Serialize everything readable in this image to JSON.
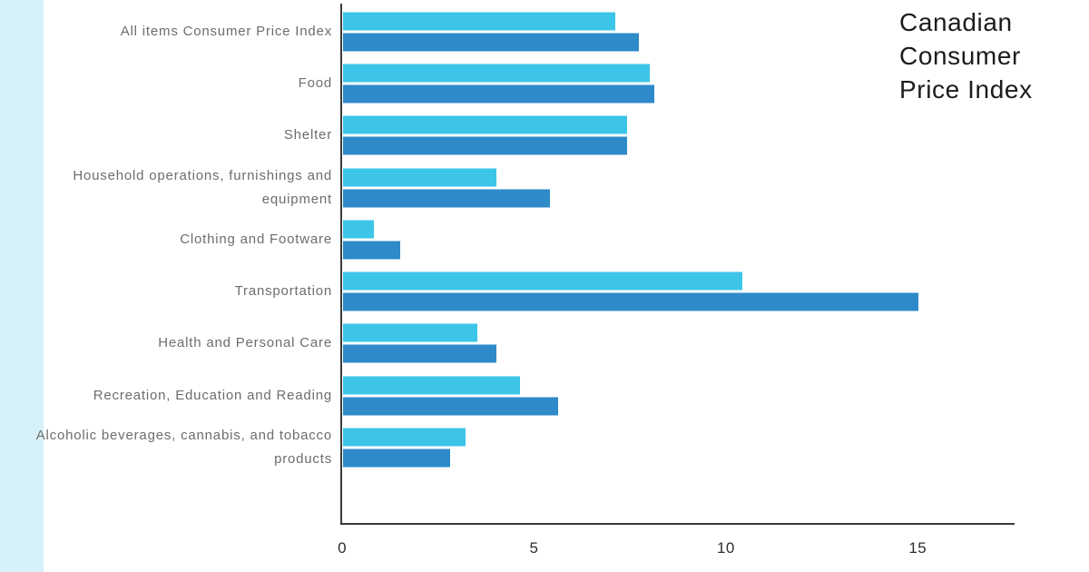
{
  "page": {
    "background_color": "#ffffff",
    "accent_stripe_color": "#d7f1f9"
  },
  "title": "Canadian Consumer Price Index",
  "chart_data": {
    "type": "bar",
    "orientation": "horizontal",
    "title": "Canadian Consumer Price Index",
    "categories": [
      "All items Consumer Price Index",
      "Food",
      "Shelter",
      "Household operations, furnishings and equipment",
      "Clothing and Footware",
      "Transportation",
      "Health and Personal Care",
      "Recreation, Education and Reading",
      "Alcoholic beverages, cannabis, and tobacco products"
    ],
    "series": [
      {
        "name": "top-bar-light-blue",
        "color": "#3cc5e8",
        "values": [
          7.1,
          8.0,
          7.4,
          4.0,
          0.8,
          10.4,
          3.5,
          4.6,
          3.2
        ]
      },
      {
        "name": "bottom-bar-dark-blue",
        "color": "#2e8ac9",
        "values": [
          7.7,
          8.1,
          7.4,
          5.4,
          1.5,
          15.0,
          4.0,
          5.6,
          2.8
        ]
      }
    ],
    "x_ticks": [
      "0",
      "5",
      "10",
      "15"
    ],
    "x_tick_values": [
      0,
      5,
      10,
      15
    ],
    "xlim": [
      0,
      17.5
    ],
    "xlabel": "",
    "ylabel": "",
    "grid": false,
    "legend": "none",
    "axis_color": "#3a3a3a",
    "category_label_color": "#6d6d6d",
    "tick_label_color": "#2e2e2e"
  }
}
